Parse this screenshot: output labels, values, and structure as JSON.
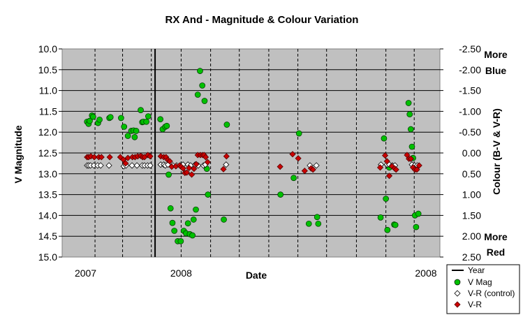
{
  "chart_data": {
    "type": "scatter",
    "title": "RX And - Magnitude & Colour Variation",
    "xlabel": "Date",
    "ylabel": "V Magnitude",
    "y2label": "Colour (B-V & V-R)",
    "ylim": [
      10.0,
      15.0
    ],
    "y_inverted": true,
    "y_ticks": [
      "10.0",
      "10.5",
      "11.0",
      "11.5",
      "12.0",
      "12.5",
      "13.0",
      "13.5",
      "14.0",
      "14.5",
      "15.0"
    ],
    "y2lim": [
      -2.5,
      2.5
    ],
    "y2_ticks": [
      "-2.50",
      "-2.00",
      "-1.50",
      "-1.00",
      "-0.50",
      "0.00",
      "0.50",
      "1.00",
      "1.50",
      "2.00",
      "2.50"
    ],
    "x_range": [
      0,
      100
    ],
    "x_tick_labels": [
      {
        "x": 6.2,
        "label": "2007"
      },
      {
        "x": 31.5,
        "label": "2008"
      },
      {
        "x": 96.3,
        "label": "2008"
      }
    ],
    "month_gridlines": [
      8.7,
      16.0,
      23.6,
      31.5,
      39.3,
      46.9,
      54.7,
      62.4,
      70.0,
      77.9,
      85.7,
      93.2
    ],
    "year_line_x": 24.6,
    "annotation_top": "More Blue",
    "annotation_bottom": "More Red",
    "grid": true,
    "legend_position": "bottom-right",
    "series": [
      {
        "name": "Year",
        "kind": "line",
        "color": "#000000"
      },
      {
        "name": "V Mag",
        "marker": "circle",
        "color": "#00c000",
        "axis": "left",
        "points": [
          [
            6.6,
            11.75
          ],
          [
            7.0,
            11.8
          ],
          [
            7.3,
            11.73
          ],
          [
            7.9,
            11.6
          ],
          [
            8.2,
            11.63
          ],
          [
            9.5,
            11.78
          ],
          [
            9.9,
            11.7
          ],
          [
            12.5,
            11.66
          ],
          [
            12.8,
            11.64
          ],
          [
            15.6,
            11.66
          ],
          [
            16.4,
            11.87
          ],
          [
            17.4,
            12.09
          ],
          [
            18.3,
            11.97
          ],
          [
            18.9,
            11.96
          ],
          [
            19.2,
            12.12
          ],
          [
            19.6,
            11.97
          ],
          [
            20.8,
            11.47
          ],
          [
            21.2,
            11.76
          ],
          [
            21.5,
            11.75
          ],
          [
            22.3,
            11.75
          ],
          [
            22.8,
            11.62
          ],
          [
            26.0,
            11.69
          ],
          [
            26.6,
            11.93
          ],
          [
            27.3,
            11.87
          ],
          [
            27.7,
            11.85
          ],
          [
            28.2,
            13.02
          ],
          [
            28.7,
            13.83
          ],
          [
            29.2,
            14.18
          ],
          [
            29.7,
            14.37
          ],
          [
            30.6,
            14.62
          ],
          [
            31.4,
            14.62
          ],
          [
            32.2,
            14.37
          ],
          [
            32.8,
            14.43
          ],
          [
            33.3,
            14.19
          ],
          [
            33.8,
            14.45
          ],
          [
            34.5,
            14.48
          ],
          [
            34.8,
            14.1
          ],
          [
            35.4,
            13.86
          ],
          [
            35.9,
            11.1
          ],
          [
            36.5,
            10.53
          ],
          [
            37.1,
            10.88
          ],
          [
            37.7,
            11.25
          ],
          [
            38.3,
            12.88
          ],
          [
            38.6,
            13.5
          ],
          [
            42.8,
            14.1
          ],
          [
            43.6,
            11.82
          ],
          [
            57.8,
            13.5
          ],
          [
            61.3,
            13.1
          ],
          [
            62.7,
            12.03
          ],
          [
            65.3,
            14.2
          ],
          [
            67.5,
            14.04
          ],
          [
            67.8,
            14.2
          ],
          [
            84.3,
            14.05
          ],
          [
            85.2,
            12.15
          ],
          [
            85.7,
            13.6
          ],
          [
            86.1,
            14.35
          ],
          [
            86.6,
            12.85
          ],
          [
            87.9,
            14.22
          ],
          [
            88.2,
            14.23
          ],
          [
            91.7,
            11.3
          ],
          [
            92.0,
            11.57
          ],
          [
            92.3,
            11.93
          ],
          [
            92.6,
            12.35
          ],
          [
            92.9,
            12.62
          ],
          [
            93.4,
            14.0
          ],
          [
            93.7,
            14.28
          ],
          [
            94.3,
            13.96
          ]
        ]
      },
      {
        "name": "V-R (control)",
        "marker": "diamond-open",
        "color": "#ffffff",
        "axis": "right",
        "points": [
          [
            6.6,
            0.3
          ],
          [
            7.0,
            0.3
          ],
          [
            7.5,
            0.3
          ],
          [
            8.4,
            0.3
          ],
          [
            9.4,
            0.3
          ],
          [
            10.2,
            0.3
          ],
          [
            12.4,
            0.3
          ],
          [
            16.3,
            0.32
          ],
          [
            16.9,
            0.3
          ],
          [
            18.5,
            0.3
          ],
          [
            19.8,
            0.3
          ],
          [
            21.2,
            0.3
          ],
          [
            21.8,
            0.3
          ],
          [
            22.6,
            0.3
          ],
          [
            23.3,
            0.3
          ],
          [
            26.1,
            0.28
          ],
          [
            26.9,
            0.28
          ],
          [
            27.3,
            0.3
          ],
          [
            28.0,
            0.28
          ],
          [
            29.3,
            0.3
          ],
          [
            30.3,
            0.3
          ],
          [
            31.4,
            0.3
          ],
          [
            32.0,
            0.28
          ],
          [
            33.3,
            0.28
          ],
          [
            34.0,
            0.3
          ],
          [
            35.2,
            0.28
          ],
          [
            36.0,
            0.3
          ],
          [
            37.4,
            0.3
          ],
          [
            37.9,
            0.28
          ],
          [
            43.4,
            0.28
          ],
          [
            65.6,
            0.3
          ],
          [
            67.3,
            0.3
          ],
          [
            84.4,
            0.28
          ],
          [
            86.0,
            0.28
          ],
          [
            86.6,
            0.28
          ],
          [
            87.4,
            0.3
          ],
          [
            88.1,
            0.3
          ],
          [
            92.6,
            0.28
          ],
          [
            93.3,
            0.3
          ],
          [
            94.0,
            0.3
          ]
        ]
      },
      {
        "name": "V-R",
        "marker": "diamond",
        "color": "#cc0000",
        "axis": "right",
        "points": [
          [
            6.6,
            0.1
          ],
          [
            7.0,
            0.1
          ],
          [
            7.6,
            0.08
          ],
          [
            8.5,
            0.1
          ],
          [
            9.7,
            0.1
          ],
          [
            10.4,
            0.1
          ],
          [
            12.6,
            0.1
          ],
          [
            15.4,
            0.1
          ],
          [
            16.2,
            0.16
          ],
          [
            16.8,
            0.25
          ],
          [
            17.4,
            0.12
          ],
          [
            18.6,
            0.1
          ],
          [
            19.3,
            0.1
          ],
          [
            20.0,
            0.08
          ],
          [
            20.8,
            0.07
          ],
          [
            21.3,
            0.1
          ],
          [
            21.8,
            0.1
          ],
          [
            22.7,
            0.05
          ],
          [
            23.3,
            0.08
          ],
          [
            26.1,
            0.08
          ],
          [
            26.9,
            0.1
          ],
          [
            27.5,
            0.1
          ],
          [
            28.0,
            0.17
          ],
          [
            28.5,
            0.2
          ],
          [
            29.0,
            0.33
          ],
          [
            30.1,
            0.32
          ],
          [
            31.1,
            0.3
          ],
          [
            31.5,
            0.33
          ],
          [
            32.0,
            0.37
          ],
          [
            32.5,
            0.48
          ],
          [
            33.0,
            0.47
          ],
          [
            33.6,
            0.36
          ],
          [
            34.3,
            0.52
          ],
          [
            34.9,
            0.38
          ],
          [
            35.5,
            0.27
          ],
          [
            35.9,
            0.05
          ],
          [
            36.6,
            0.05
          ],
          [
            37.2,
            0.05
          ],
          [
            37.6,
            0.05
          ],
          [
            38.0,
            0.1
          ],
          [
            38.5,
            0.22
          ],
          [
            42.7,
            0.39
          ],
          [
            43.5,
            0.08
          ],
          [
            57.7,
            0.33
          ],
          [
            61.0,
            0.03
          ],
          [
            62.5,
            0.13
          ],
          [
            64.2,
            0.43
          ],
          [
            65.9,
            0.37
          ],
          [
            66.4,
            0.4
          ],
          [
            84.2,
            0.35
          ],
          [
            85.5,
            0.06
          ],
          [
            86.0,
            0.2
          ],
          [
            86.6,
            0.55
          ],
          [
            87.3,
            0.32
          ],
          [
            88.0,
            0.37
          ],
          [
            88.4,
            0.4
          ],
          [
            91.3,
            0.05
          ],
          [
            91.8,
            0.14
          ],
          [
            92.3,
            0.14
          ],
          [
            92.9,
            0.35
          ],
          [
            93.4,
            0.4
          ],
          [
            93.9,
            0.4
          ],
          [
            94.5,
            0.3
          ]
        ]
      }
    ]
  }
}
